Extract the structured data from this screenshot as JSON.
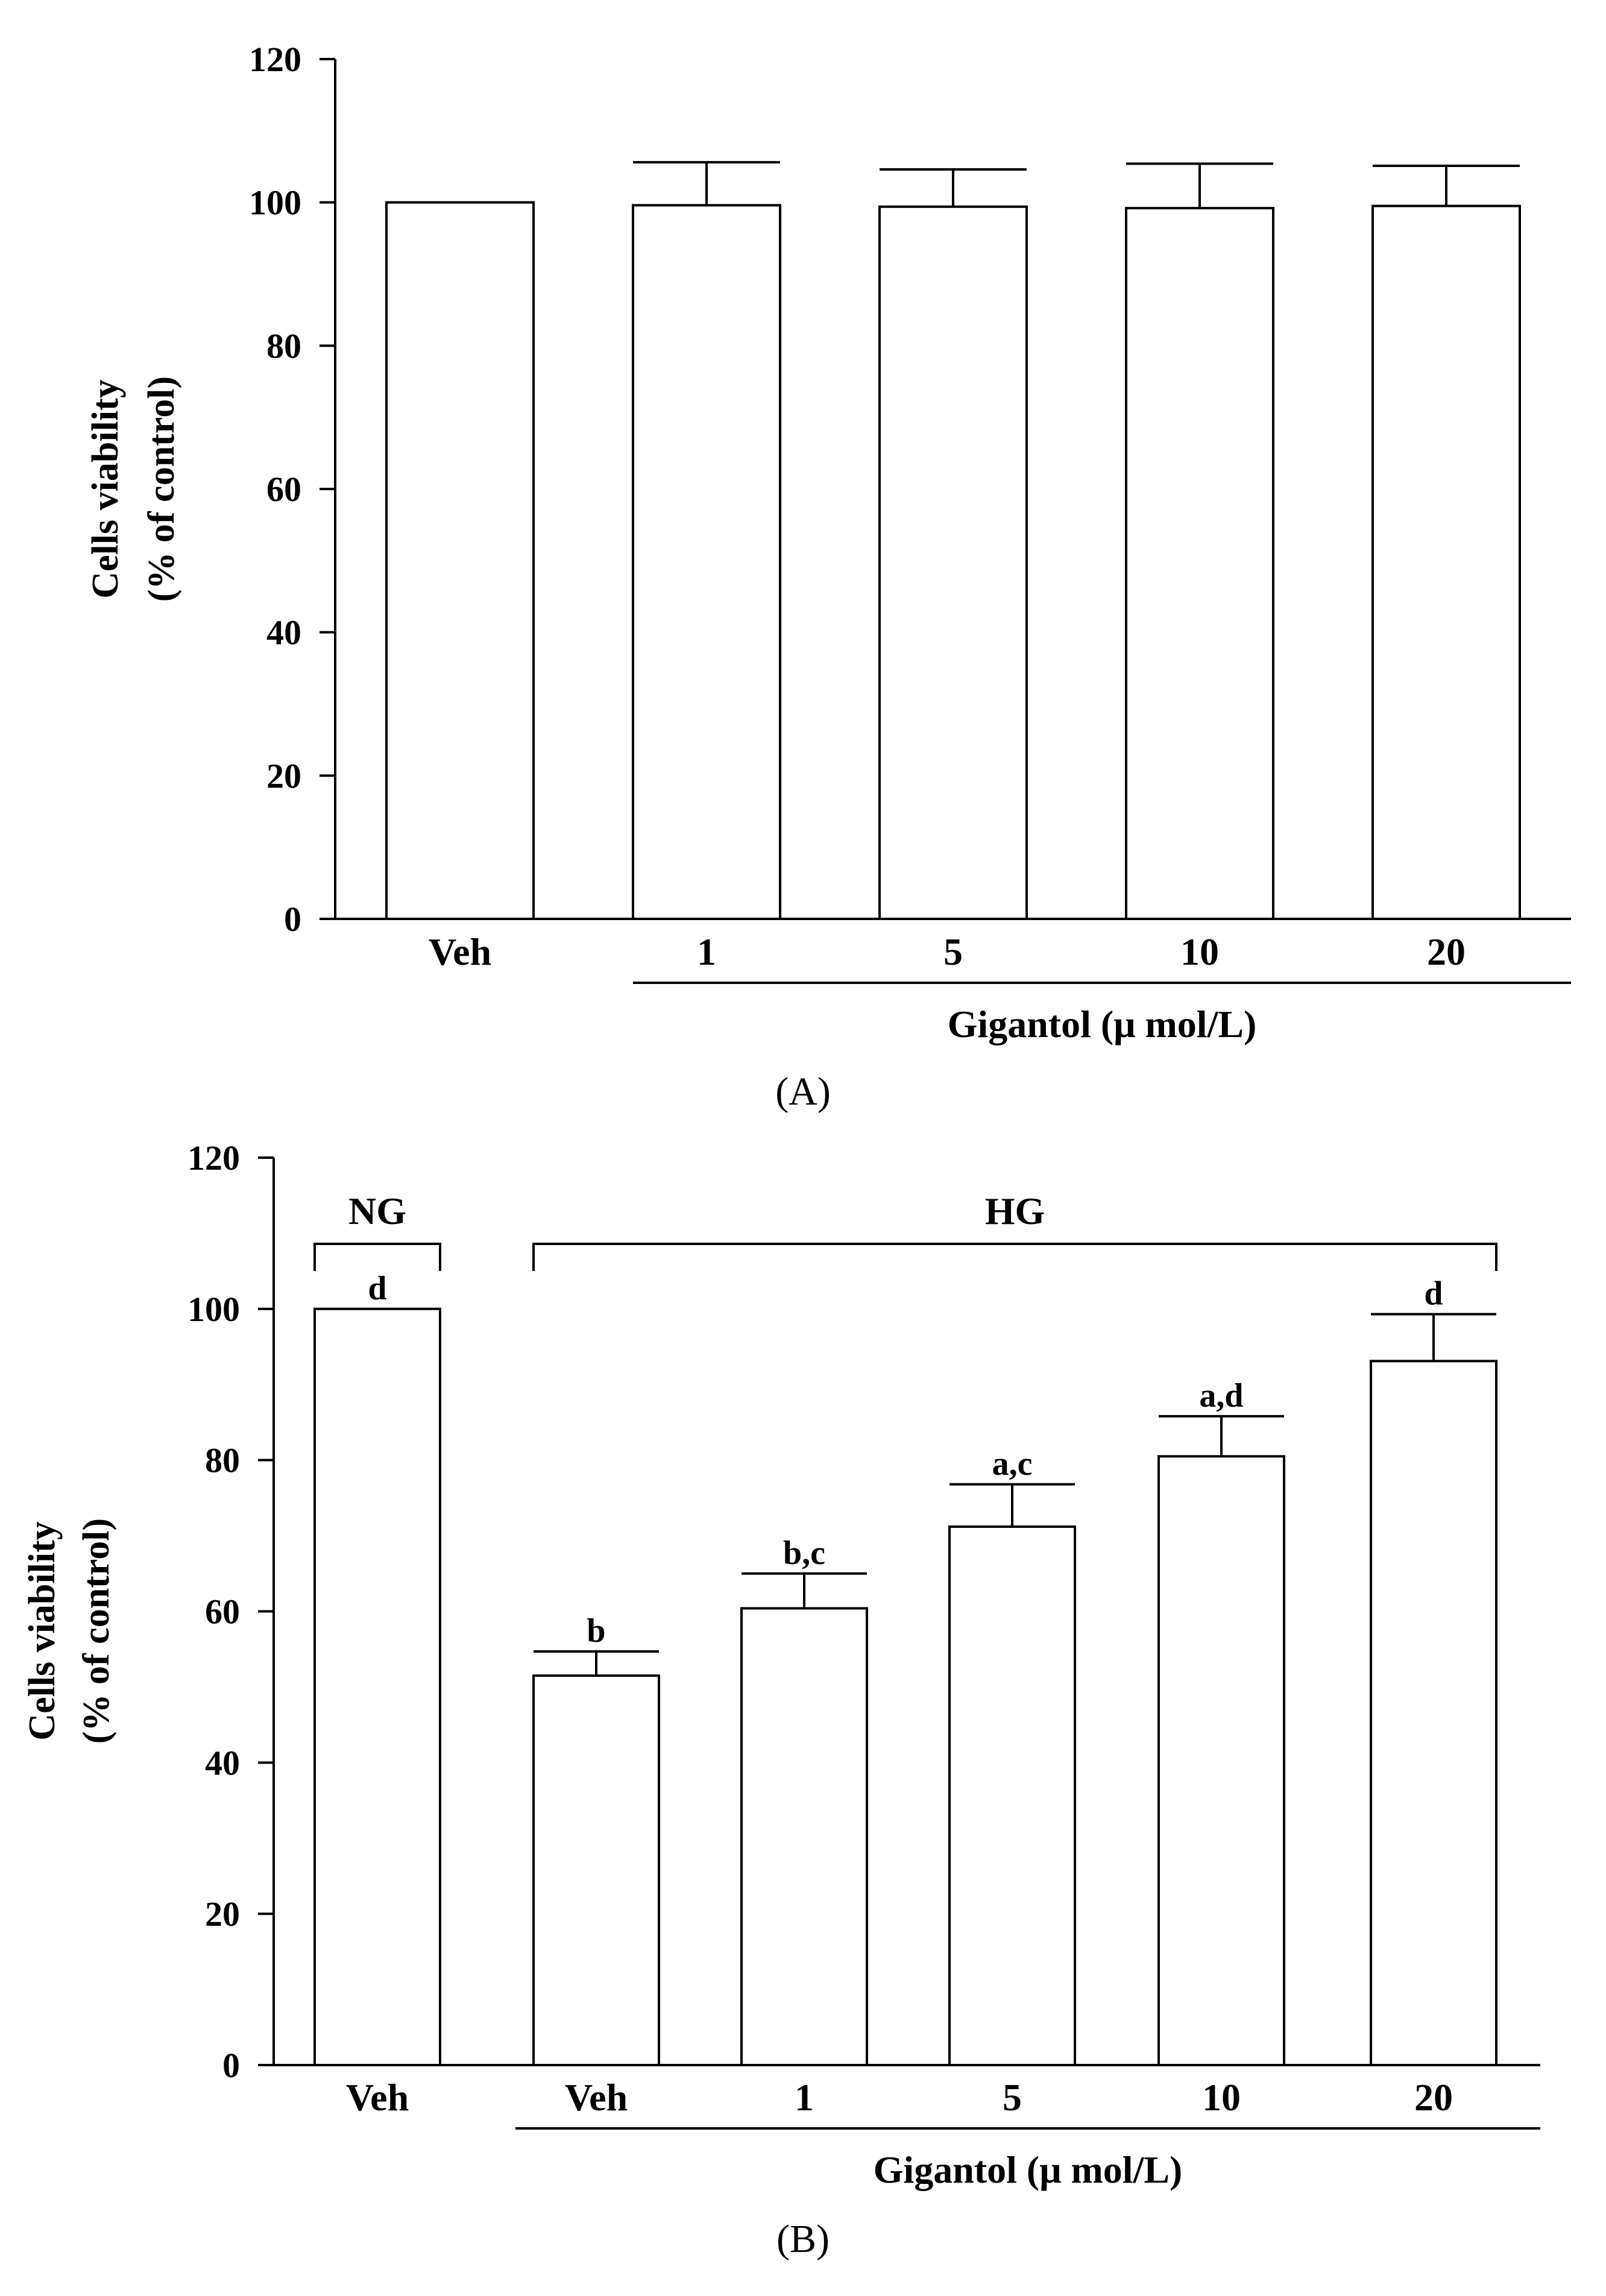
{
  "chart_data": [
    {
      "type": "bar",
      "caption": "(A)",
      "ylabel_line1": "Cells viability",
      "ylabel_line2": "(% of control)",
      "ylim": [
        0,
        120
      ],
      "yticks": [
        0,
        20,
        40,
        60,
        80,
        100,
        120
      ],
      "categories": [
        "Veh",
        "1",
        "5",
        "10",
        "20"
      ],
      "values": [
        100,
        99.6,
        99.4,
        99.2,
        99.5
      ],
      "errors": [
        0,
        6.0,
        5.2,
        6.2,
        5.6
      ],
      "xlabel": "Gigantol (μ mol/L)",
      "xlabel_span": [
        "1",
        "20"
      ]
    },
    {
      "type": "bar",
      "caption": "(B)",
      "ylabel_line1": "Cells viability",
      "ylabel_line2": "(% of control)",
      "ylim": [
        0,
        120
      ],
      "yticks": [
        0,
        20,
        40,
        60,
        80,
        100,
        120
      ],
      "categories": [
        "Veh",
        "Veh",
        "1",
        "5",
        "10",
        "20"
      ],
      "values": [
        100,
        51.5,
        60.4,
        71.2,
        80.5,
        93.1
      ],
      "errors": [
        0,
        3.2,
        4.6,
        5.6,
        5.3,
        6.2
      ],
      "significance": [
        "d",
        "b",
        "b,c",
        "a,c",
        "a,d",
        "d"
      ],
      "groups": [
        {
          "label": "NG",
          "from": 0,
          "to": 0
        },
        {
          "label": "HG",
          "from": 1,
          "to": 5
        }
      ],
      "xlabel": "Gigantol (μ mol/L)",
      "xlabel_span": [
        "Veh",
        "20"
      ]
    }
  ]
}
